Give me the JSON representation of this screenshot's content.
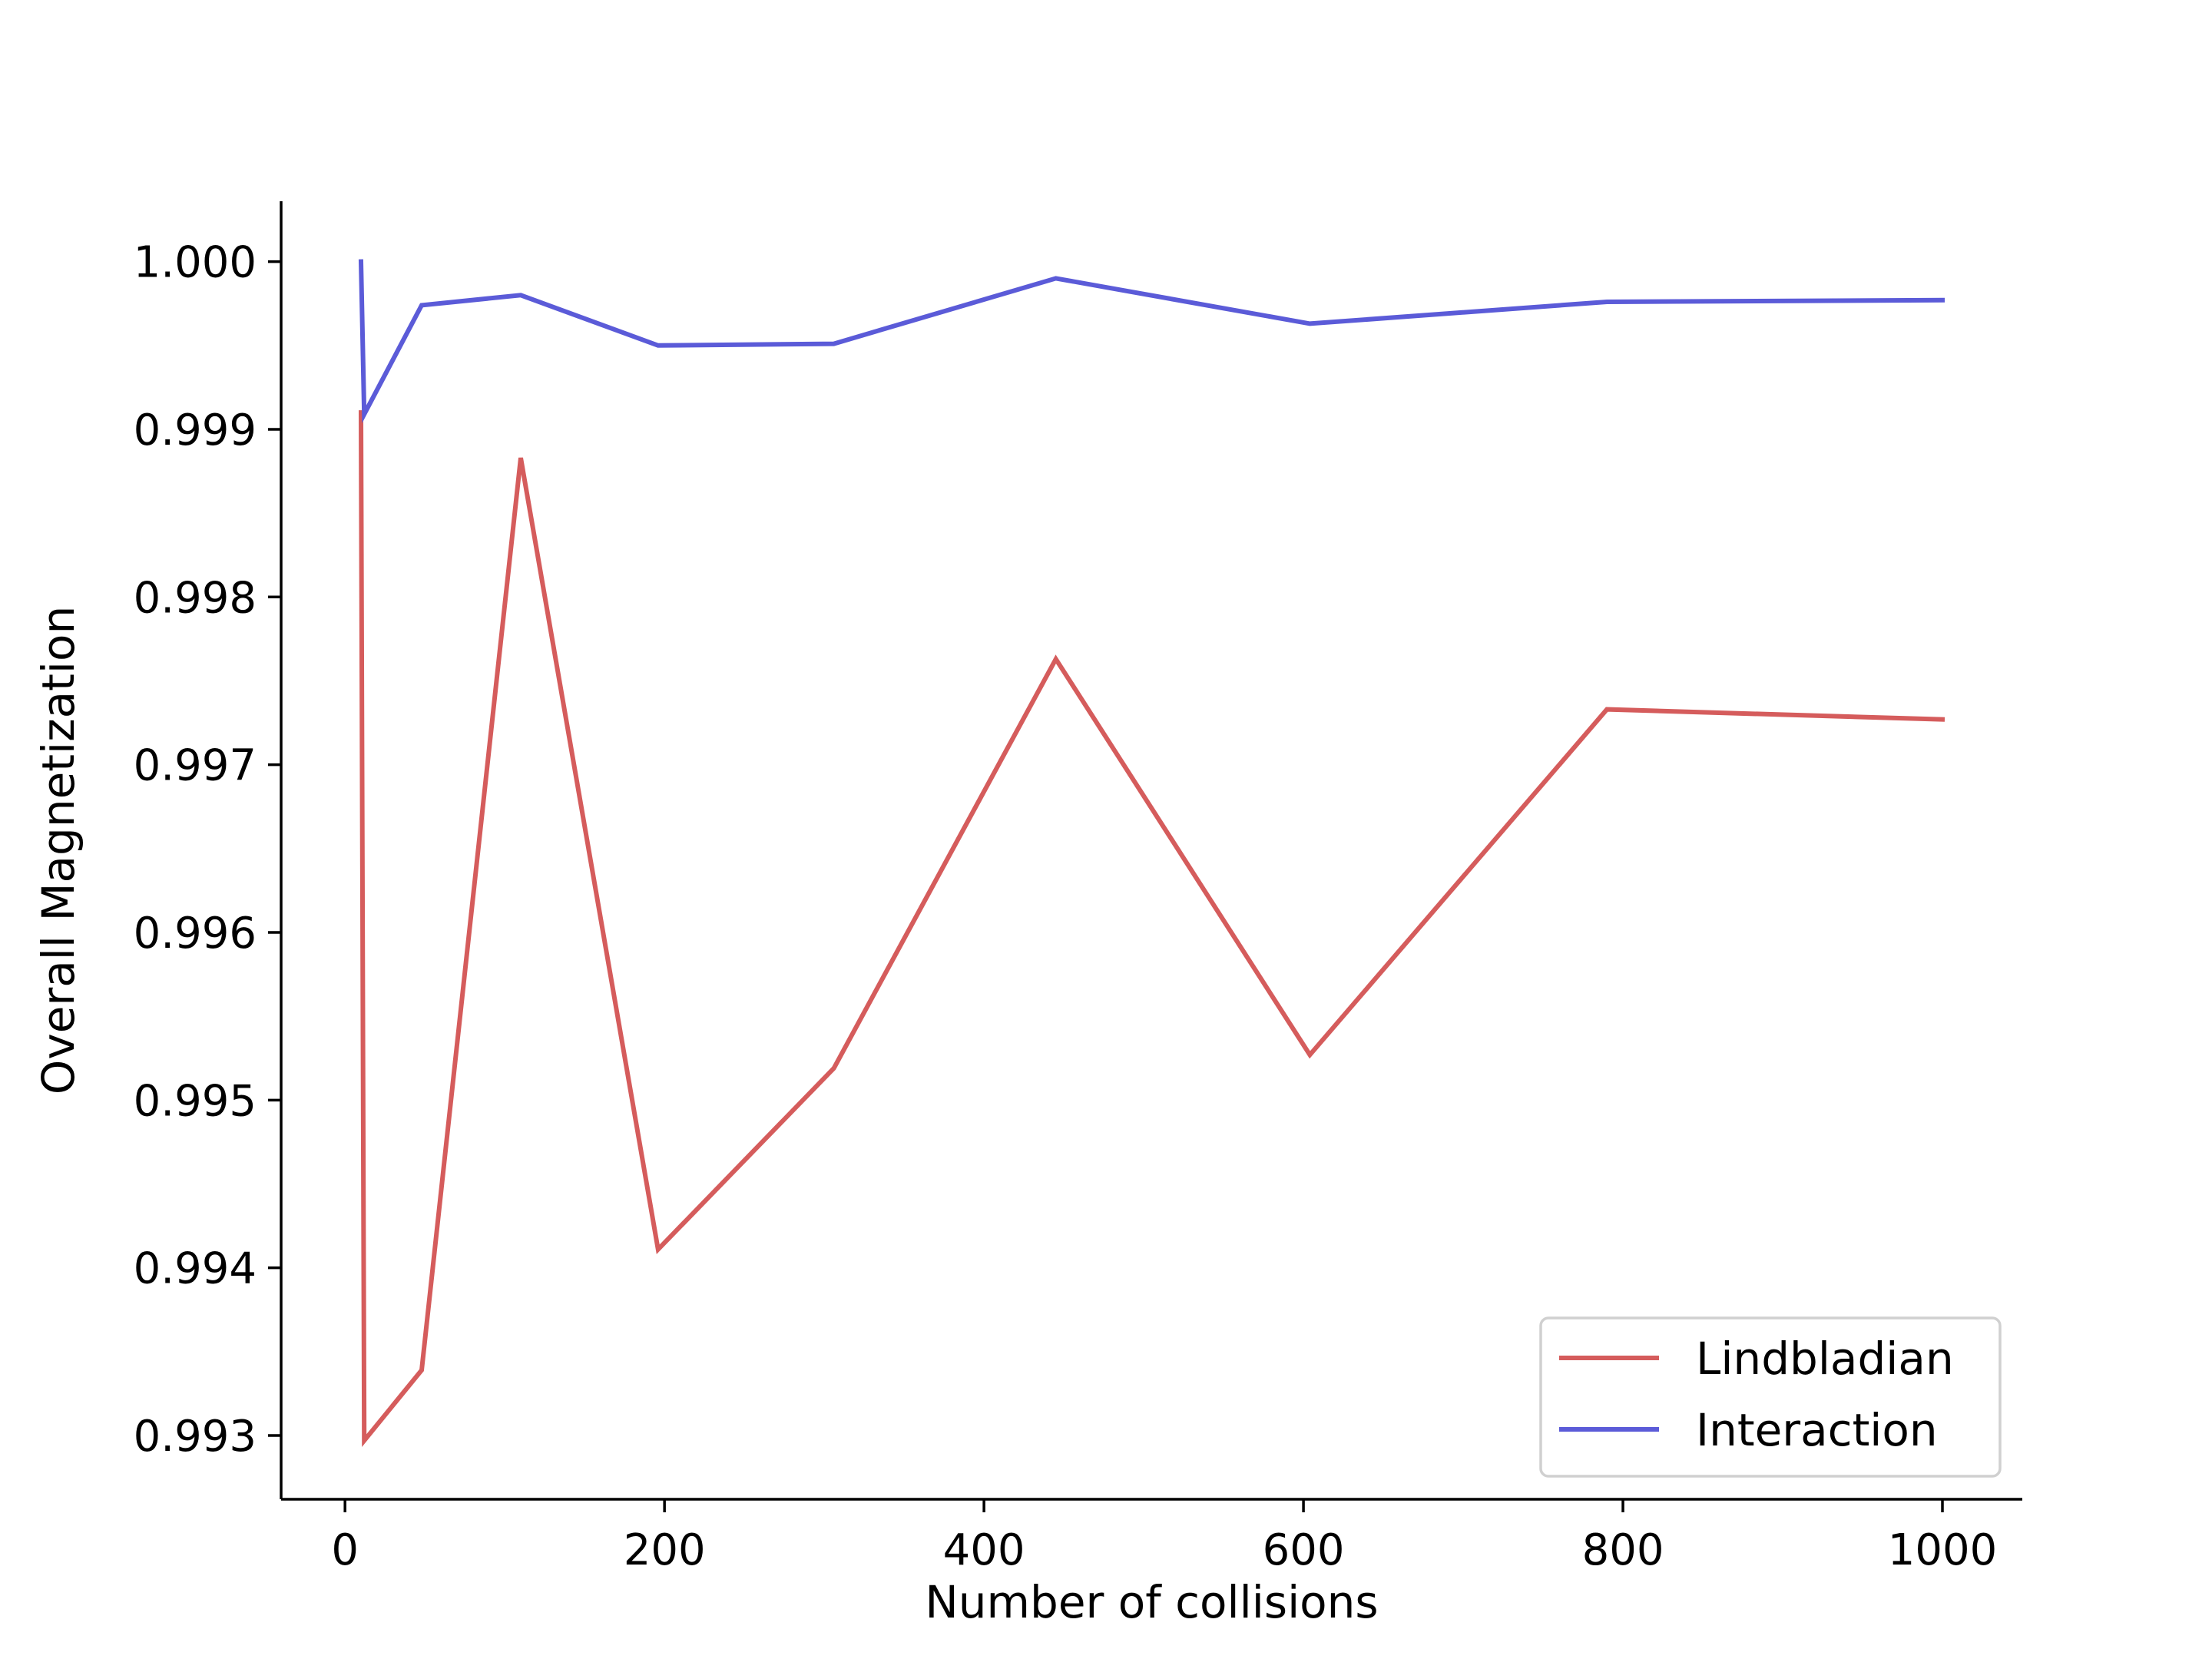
{
  "chart_data": {
    "type": "line",
    "xlabel": "Number of collisions",
    "ylabel": "Overall Magnetization",
    "xlim": [
      -40,
      1050
    ],
    "ylim": [
      0.99262,
      1.00036
    ],
    "xticks": [
      0,
      200,
      400,
      600,
      800,
      1000
    ],
    "yticks": [
      0.993,
      0.994,
      0.995,
      0.996,
      0.997,
      0.998,
      0.999,
      1.0
    ],
    "xtick_labels": [
      "0",
      "200",
      "400",
      "600",
      "800",
      "1000"
    ],
    "ytick_labels": [
      "0.993",
      "0.994",
      "0.995",
      "0.996",
      "0.997",
      "0.998",
      "0.999",
      "1.000"
    ],
    "grid": false,
    "legend_position": "bottom-right",
    "series": [
      {
        "name": "Lindbladian",
        "color": "#d55c5c",
        "x": [
          10,
          12,
          48,
          110,
          196,
          306,
          445,
          604,
          790,
          1000
        ],
        "y": [
          0.9991,
          0.99297,
          0.99339,
          0.99883,
          0.99411,
          0.99519,
          0.99763,
          0.99527,
          0.99733,
          0.99727
        ]
      },
      {
        "name": "Interaction",
        "color": "#5b5bd8",
        "x": [
          10,
          12,
          48,
          110,
          196,
          306,
          445,
          604,
          790,
          1000
        ],
        "y": [
          1.0,
          0.99909,
          0.99974,
          0.9998,
          0.9995,
          0.99951,
          0.9999,
          0.99963,
          0.99976,
          0.99977
        ]
      }
    ]
  }
}
